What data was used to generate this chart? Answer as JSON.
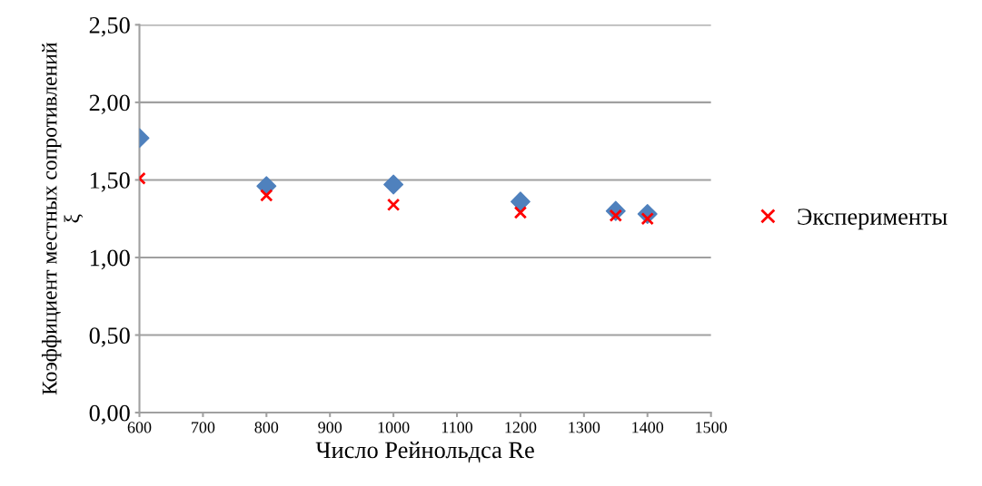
{
  "chart_data": {
    "type": "scatter",
    "xlabel": "Число Рейнольдса Re",
    "ylabel": "Коэффициент местных сопротивлений\nξ",
    "x": [
      600,
      800,
      1000,
      1200,
      1350,
      1400
    ],
    "series": [
      {
        "color": "#4f81bd",
        "marker": "diamond",
        "values": [
          1.77,
          1.46,
          1.47,
          1.36,
          1.3,
          1.28
        ]
      },
      {
        "name": "Эксперименты",
        "color": "#ff0000",
        "marker": "cross",
        "values": [
          1.51,
          1.4,
          1.34,
          1.29,
          1.27,
          1.25
        ]
      }
    ],
    "xlim": [
      600,
      1500
    ],
    "xticks": [
      600,
      700,
      800,
      900,
      1000,
      1100,
      1200,
      1300,
      1400,
      1500
    ],
    "ylim": [
      0,
      2.5
    ],
    "yticks": [
      {
        "value": 0,
        "label": "0,00"
      },
      {
        "value": 0.5,
        "label": "0,50"
      },
      {
        "value": 1.0,
        "label": "1,00"
      },
      {
        "value": 1.5,
        "label": "1,50"
      },
      {
        "value": 2.0,
        "label": "2,00"
      },
      {
        "value": 2.5,
        "label": "2,50"
      }
    ],
    "grid": "y",
    "legend": "right"
  }
}
